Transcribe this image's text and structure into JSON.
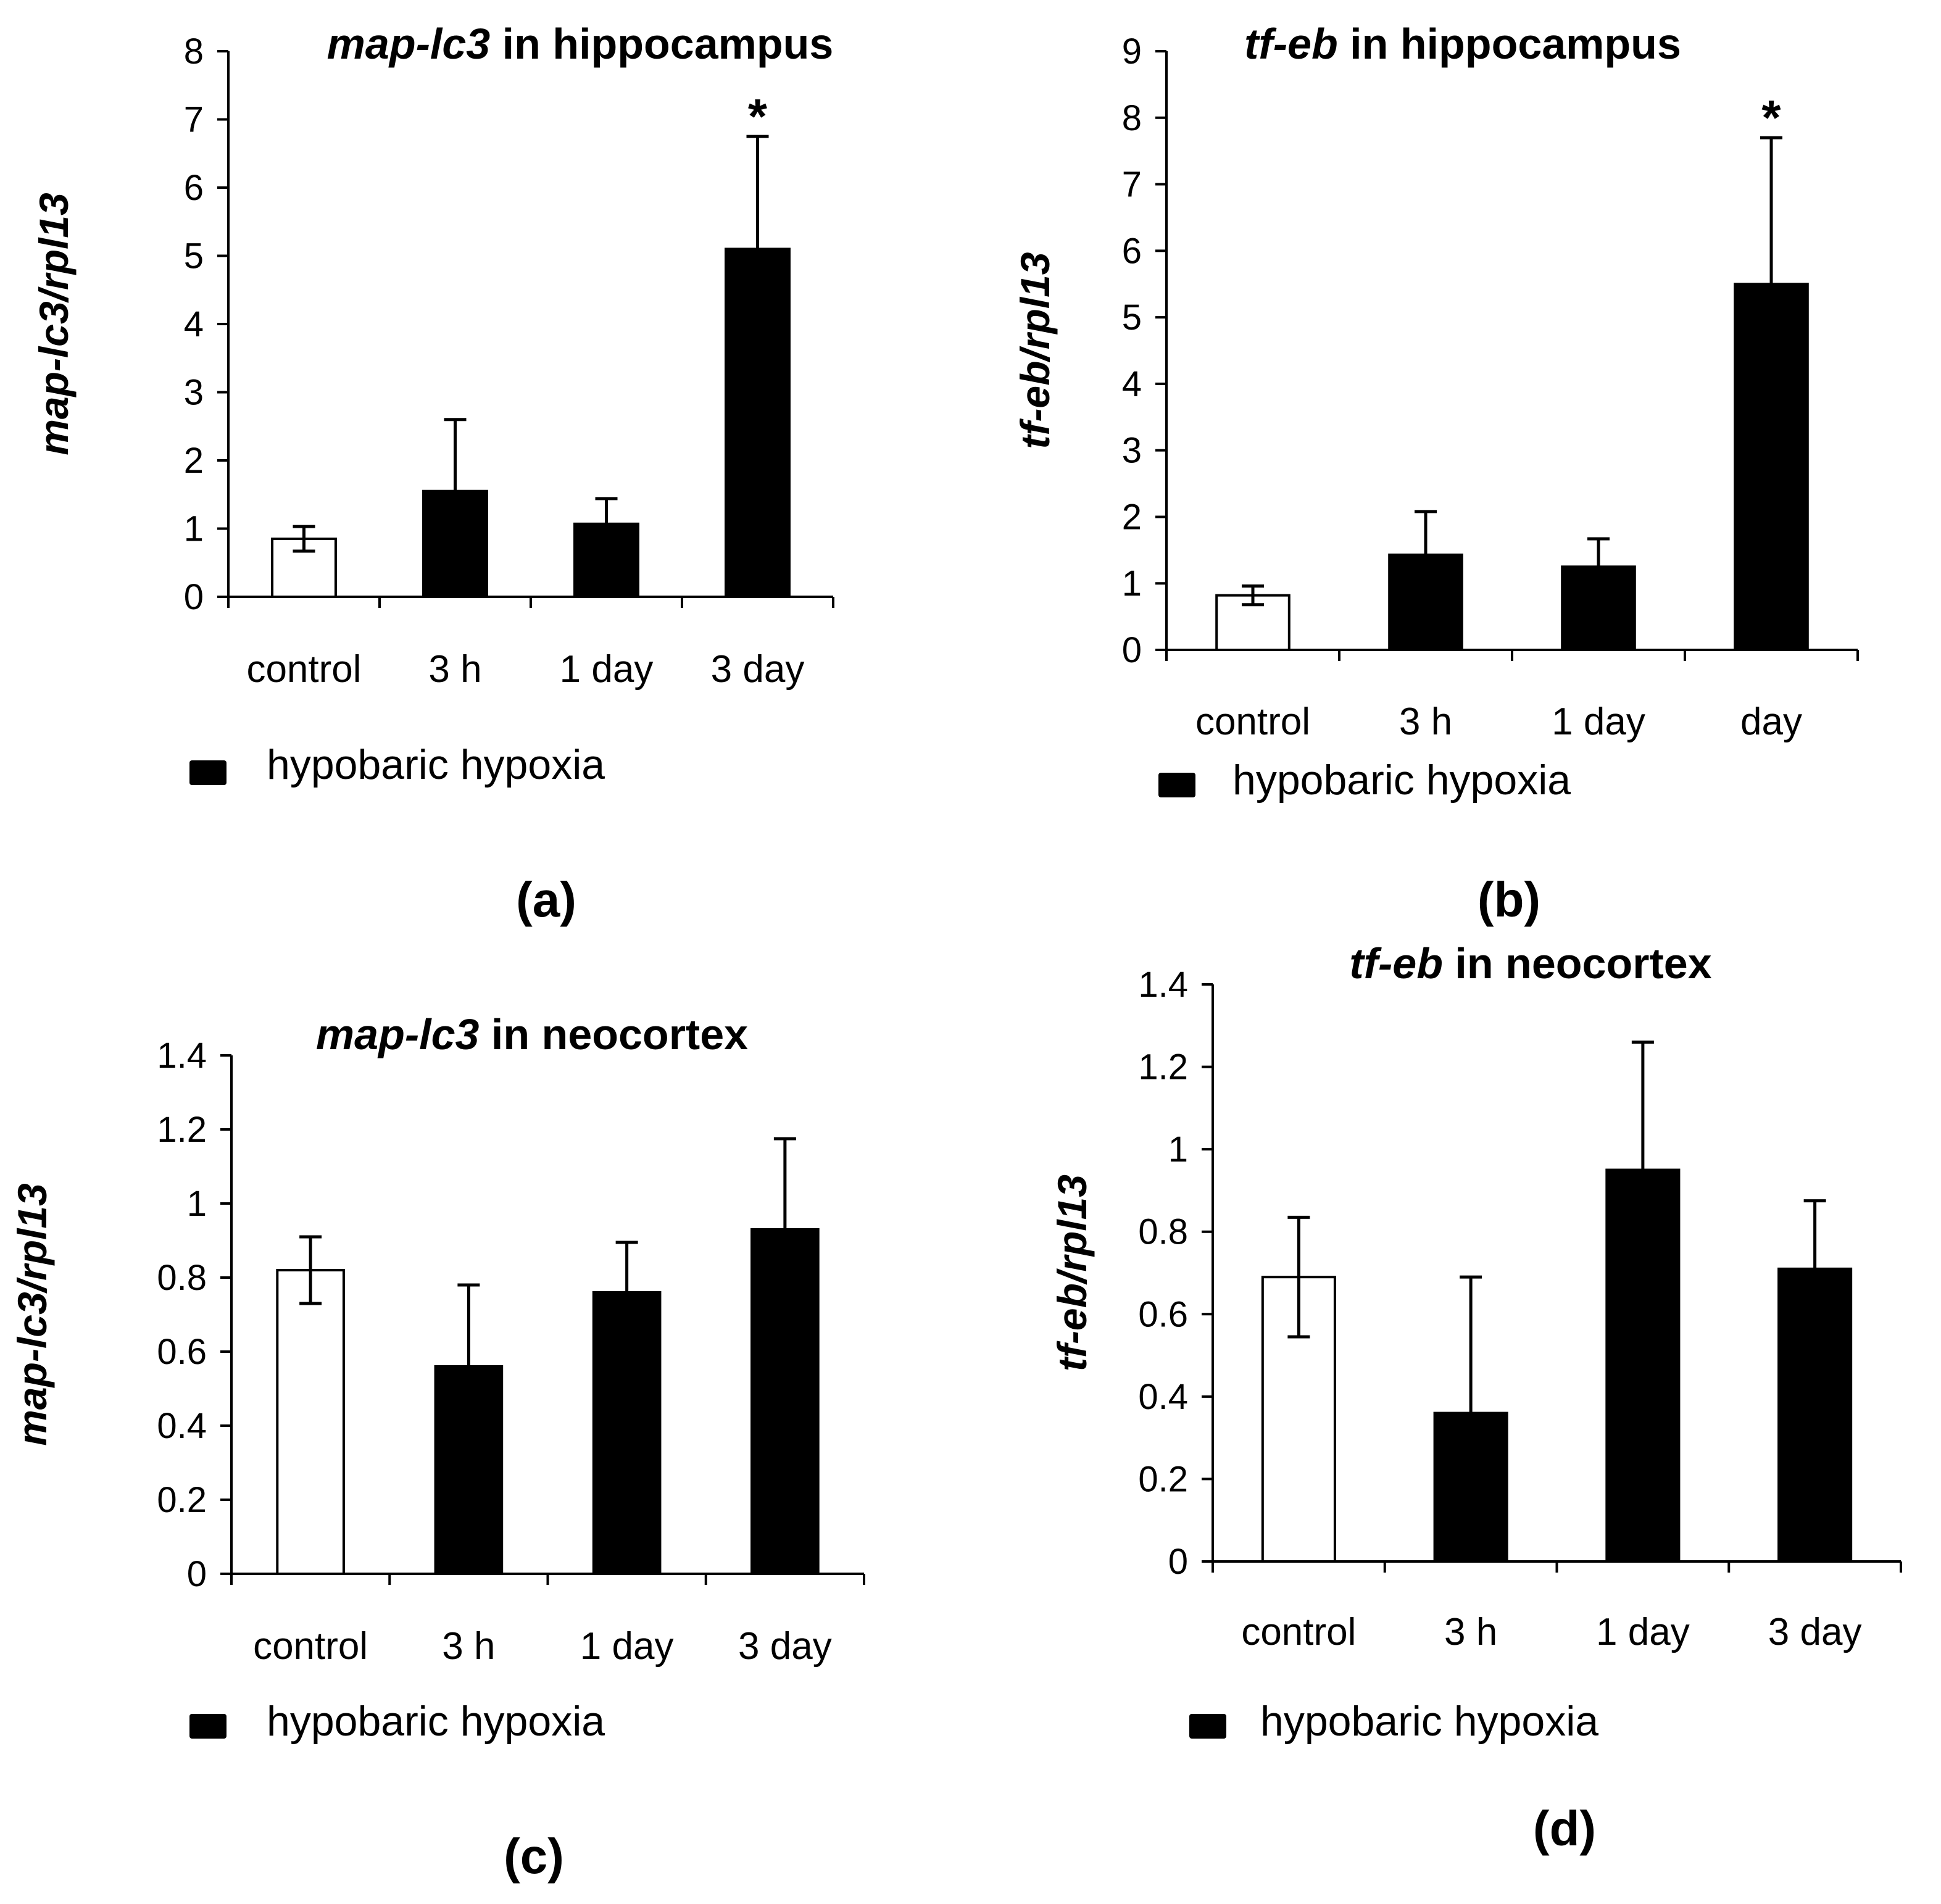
{
  "chart_data": [
    {
      "panel": "(a)",
      "type": "bar",
      "title_gene": "map-lc3",
      "title_rest": " in hippocampus",
      "ylabel": "map-lc3/rpl13",
      "xlabel": "",
      "categories": [
        "control",
        "3 h",
        "1 day",
        "3 day"
      ],
      "values": [
        0.85,
        1.55,
        1.07,
        5.1
      ],
      "errors": [
        0.18,
        1.05,
        0.37,
        1.65
      ],
      "fills": [
        "#ffffff",
        "#000000",
        "#000000",
        "#000000"
      ],
      "significance": [
        "",
        "",
        "",
        "*"
      ],
      "ylim": [
        0,
        8
      ],
      "yticks": [
        "0",
        "1",
        "2",
        "3",
        "4",
        "5",
        "6",
        "7",
        "8"
      ],
      "legend": "hypobaric hypoxia"
    },
    {
      "panel": "(b)",
      "type": "bar",
      "title_gene": "tf-eb",
      "title_rest": " in hippocampus",
      "ylabel": "tf-eb/rpl13",
      "xlabel": "",
      "categories": [
        "control",
        "3 h",
        "1 day",
        "day"
      ],
      "values": [
        0.82,
        1.43,
        1.25,
        5.5
      ],
      "errors": [
        0.14,
        0.65,
        0.42,
        2.2
      ],
      "fills": [
        "#ffffff",
        "#000000",
        "#000000",
        "#000000"
      ],
      "significance": [
        "",
        "",
        "",
        "*"
      ],
      "ylim": [
        0,
        9
      ],
      "yticks": [
        "0",
        "1",
        "2",
        "3",
        "4",
        "5",
        "6",
        "7",
        "8",
        "9"
      ],
      "legend": "hypobaric hypoxia"
    },
    {
      "panel": "(c)",
      "type": "bar",
      "title_gene": "map-lc3",
      "title_rest": " in neocortex",
      "ylabel": "map-lc3/rpl13",
      "xlabel": "",
      "categories": [
        "control",
        "3 h",
        "1 day",
        "3 day"
      ],
      "values": [
        0.82,
        0.56,
        0.76,
        0.93
      ],
      "errors": [
        0.09,
        0.22,
        0.135,
        0.245
      ],
      "fills": [
        "#ffffff",
        "#000000",
        "#000000",
        "#000000"
      ],
      "significance": [
        "",
        "",
        "",
        ""
      ],
      "ylim": [
        0,
        1.4
      ],
      "yticks": [
        "0",
        "0.2",
        "0.4",
        "0.6",
        "0.8",
        "1",
        "1.2",
        "1.4"
      ],
      "legend": "hypobaric hypoxia"
    },
    {
      "panel": "(d)",
      "type": "bar",
      "title_gene": "tf-eb",
      "title_rest": " in neocortex",
      "ylabel": "tf-eb/rpl13",
      "xlabel": "",
      "categories": [
        "control",
        "3 h",
        "1 day",
        "3 day"
      ],
      "values": [
        0.69,
        0.36,
        0.95,
        0.71
      ],
      "errors": [
        0.145,
        0.33,
        0.31,
        0.165
      ],
      "fills": [
        "#ffffff",
        "#000000",
        "#000000",
        "#000000"
      ],
      "significance": [
        "",
        "",
        "",
        ""
      ],
      "ylim": [
        0,
        1.4
      ],
      "yticks": [
        "0",
        "0.2",
        "0.4",
        "0.6",
        "0.8",
        "1",
        "1.2",
        "1.4"
      ],
      "legend": "hypobaric hypoxia"
    }
  ]
}
